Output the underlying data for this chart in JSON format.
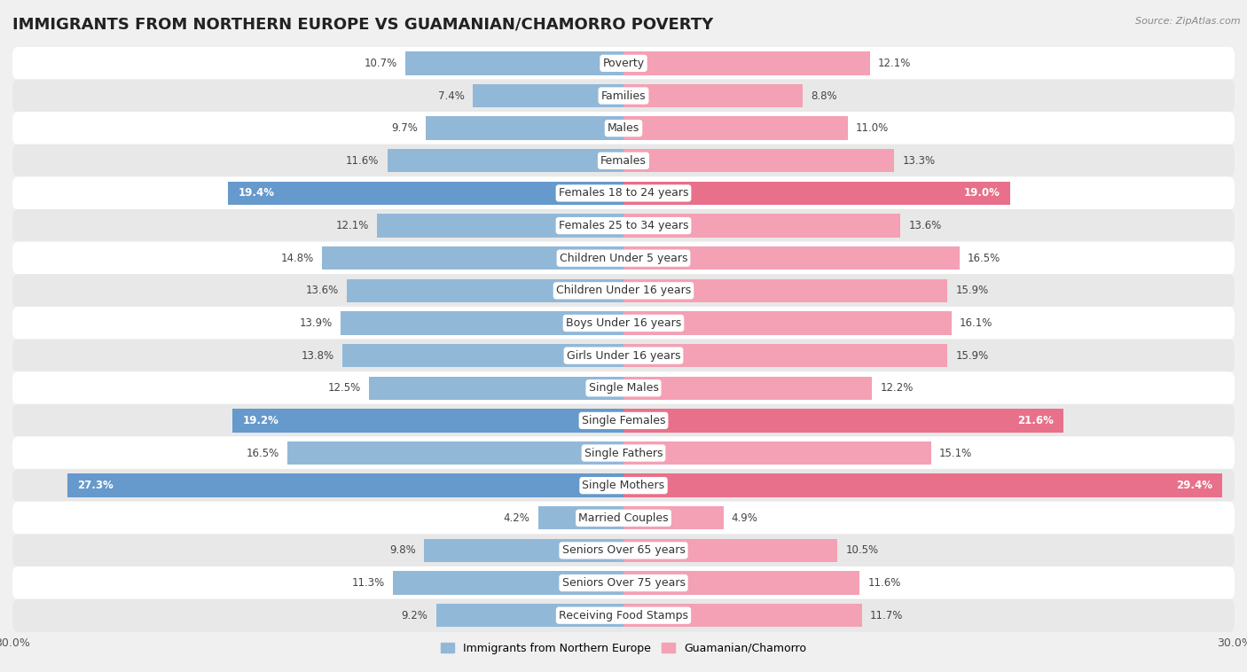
{
  "title": "IMMIGRANTS FROM NORTHERN EUROPE VS GUAMANIAN/CHAMORRO POVERTY",
  "source": "Source: ZipAtlas.com",
  "categories": [
    "Poverty",
    "Families",
    "Males",
    "Females",
    "Females 18 to 24 years",
    "Females 25 to 34 years",
    "Children Under 5 years",
    "Children Under 16 years",
    "Boys Under 16 years",
    "Girls Under 16 years",
    "Single Males",
    "Single Females",
    "Single Fathers",
    "Single Mothers",
    "Married Couples",
    "Seniors Over 65 years",
    "Seniors Over 75 years",
    "Receiving Food Stamps"
  ],
  "left_values": [
    10.7,
    7.4,
    9.7,
    11.6,
    19.4,
    12.1,
    14.8,
    13.6,
    13.9,
    13.8,
    12.5,
    19.2,
    16.5,
    27.3,
    4.2,
    9.8,
    11.3,
    9.2
  ],
  "right_values": [
    12.1,
    8.8,
    11.0,
    13.3,
    19.0,
    13.6,
    16.5,
    15.9,
    16.1,
    15.9,
    12.2,
    21.6,
    15.1,
    29.4,
    4.9,
    10.5,
    11.6,
    11.7
  ],
  "left_color": "#92b8d8",
  "right_color": "#f4a0b5",
  "left_highlight_color": "#6699cc",
  "right_highlight_color": "#e8708a",
  "highlight_rows": [
    4,
    11,
    13
  ],
  "left_label": "Immigrants from Northern Europe",
  "right_label": "Guamanian/Chamorro",
  "xlim": 30.0,
  "background_color": "#f0f0f0",
  "row_bg_light": "#ffffff",
  "row_bg_dark": "#e8e8e8",
  "bar_height": 0.72,
  "title_fontsize": 13,
  "label_fontsize": 9,
  "value_fontsize": 8.5
}
